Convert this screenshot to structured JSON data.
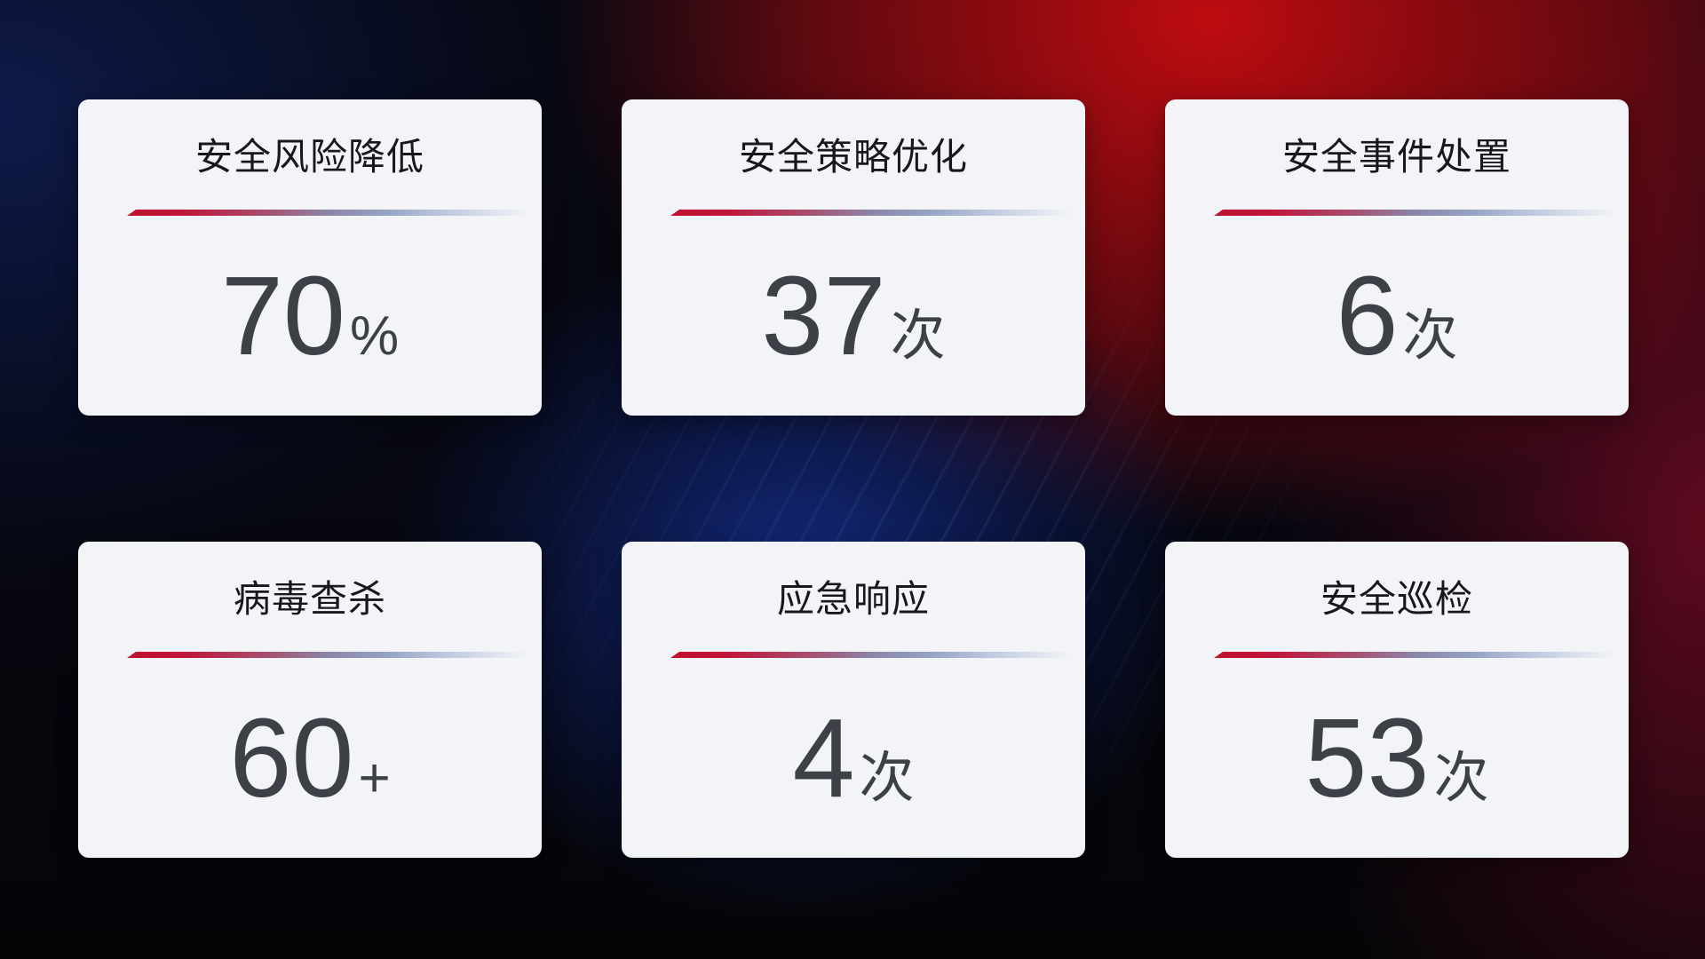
{
  "page": {
    "description": "security-operations-stats-dashboard",
    "colors": {
      "card_background": "#f3f4f8",
      "title_text": "#16181d",
      "value_text": "#3d4046",
      "divider_red": "#c1122f",
      "divider_blue": "#8f9cc0",
      "bg_navy": "#0d1a45",
      "bg_red_glow": "#c00d10",
      "bg_maroon": "#5a0a1e",
      "bg_base": "#06070d"
    }
  },
  "cards": [
    {
      "id": "risk-reduction",
      "title": "安全风险降低",
      "value": "70",
      "suffix": "%"
    },
    {
      "id": "policy-optimization",
      "title": "安全策略优化",
      "value": "37",
      "suffix": "次"
    },
    {
      "id": "incident-handling",
      "title": "安全事件处置",
      "value": "6",
      "suffix": "次"
    },
    {
      "id": "virus-scan",
      "title": "病毒查杀",
      "value": "60",
      "suffix": "+"
    },
    {
      "id": "emergency-response",
      "title": "应急响应",
      "value": "4",
      "suffix": "次"
    },
    {
      "id": "security-inspection",
      "title": "安全巡检",
      "value": "53",
      "suffix": "次"
    }
  ]
}
